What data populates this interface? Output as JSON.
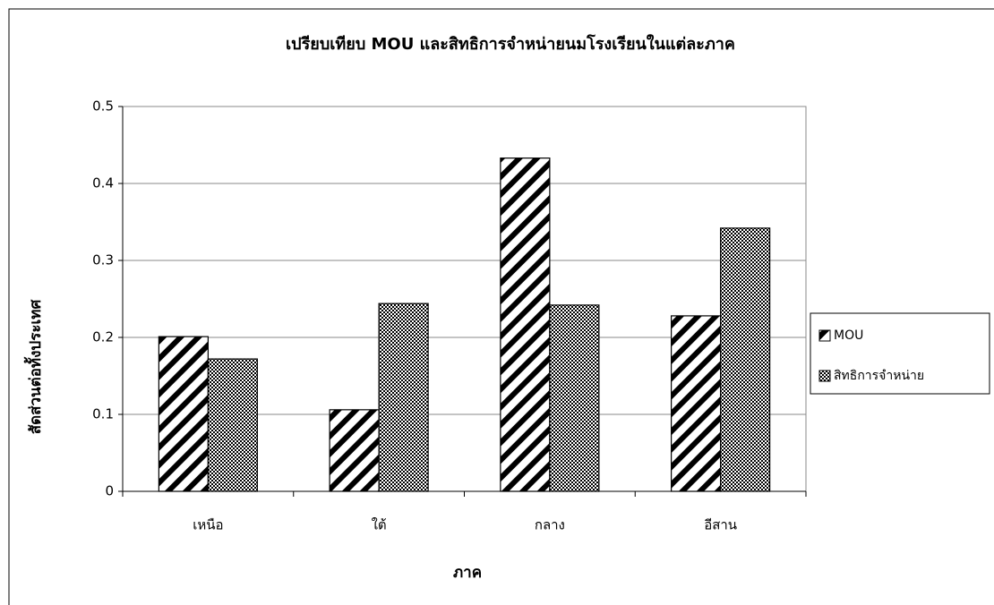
{
  "chart_data": {
    "type": "bar",
    "title": "เปรียบเทียบ MOU และสิทธิการจำหน่ายนมโรงเรียนในแต่ละภาค",
    "x_label": "ภาค",
    "y_label": "สัดส่วนต่อทั้งประเทศ",
    "categories": [
      "เหนือ",
      "ใต้",
      "กลาง",
      "อีสาน"
    ],
    "series": [
      {
        "name": "MOU",
        "color": "#000000",
        "values": [
          0.201,
          0.106,
          0.433,
          0.228
        ]
      },
      {
        "name": "สิทธิการจำหน่าย",
        "color": "#000000",
        "values": [
          0.172,
          0.244,
          0.242,
          0.342
        ]
      }
    ],
    "ylim": [
      0,
      0.5
    ],
    "yticks": [
      0,
      0.1,
      0.2,
      0.3,
      0.4,
      0.5
    ],
    "grid": true,
    "legend": "right"
  }
}
